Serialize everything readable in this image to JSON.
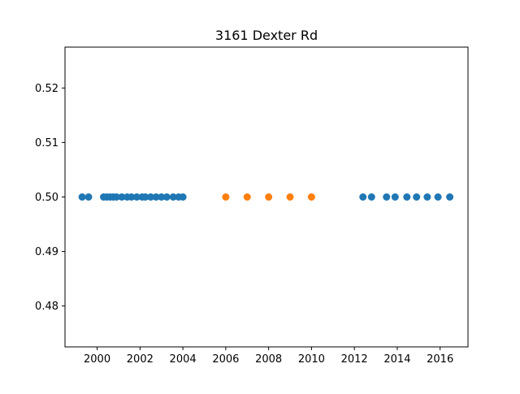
{
  "chart_data": {
    "type": "scatter",
    "title": "3161 Dexter Rd",
    "xlabel": "",
    "ylabel": "",
    "xlim": [
      1998.5,
      2017.3
    ],
    "ylim": [
      0.4725,
      0.5275
    ],
    "xticks": [
      2000,
      2002,
      2004,
      2006,
      2008,
      2010,
      2012,
      2014,
      2016
    ],
    "xtick_labels": [
      "2000",
      "2002",
      "2004",
      "2006",
      "2008",
      "2010",
      "2012",
      "2014",
      "2016"
    ],
    "yticks": [
      0.48,
      0.49,
      0.5,
      0.51,
      0.52
    ],
    "ytick_labels": [
      "0.48",
      "0.49",
      "0.50",
      "0.51",
      "0.52"
    ],
    "grid": false,
    "series": [
      {
        "color": "#1f77b4",
        "x": [
          1999.3,
          1999.6,
          2000.3,
          2000.45,
          2000.6,
          2000.75,
          2000.9,
          2001.15,
          2001.4,
          2001.6,
          2001.85,
          2002.1,
          2002.25,
          2002.5,
          2002.75,
          2003.0,
          2003.25,
          2003.55,
          2003.8,
          2004.0,
          2012.4,
          2012.8,
          2013.5,
          2013.9,
          2014.45,
          2014.9,
          2015.4,
          2015.9,
          2016.45
        ],
        "y": [
          0.5,
          0.5,
          0.5,
          0.5,
          0.5,
          0.5,
          0.5,
          0.5,
          0.5,
          0.5,
          0.5,
          0.5,
          0.5,
          0.5,
          0.5,
          0.5,
          0.5,
          0.5,
          0.5,
          0.5,
          0.5,
          0.5,
          0.5,
          0.5,
          0.5,
          0.5,
          0.5,
          0.5,
          0.5
        ]
      },
      {
        "color": "#ff7f0e",
        "x": [
          2006.0,
          2007.0,
          2008.0,
          2009.0,
          2010.0
        ],
        "y": [
          0.5,
          0.5,
          0.5,
          0.5,
          0.5
        ]
      }
    ]
  }
}
